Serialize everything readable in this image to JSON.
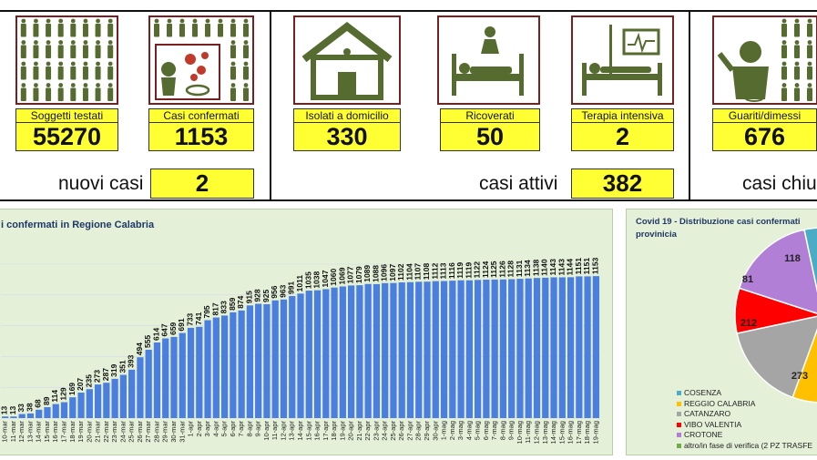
{
  "cards": [
    {
      "label": "Soggetti testati",
      "value": "55270",
      "icon": "crowd-icon"
    },
    {
      "label": "Casi confermati",
      "value": "1153",
      "icon": "virus-sneeze-icon"
    },
    {
      "label": "Isolati a domicilio",
      "value": "330",
      "icon": "house-icon"
    },
    {
      "label": "Ricoverati",
      "value": "50",
      "icon": "hospital-bed-icon"
    },
    {
      "label": "Terapia intensiva",
      "value": "2",
      "icon": "icu-bed-icon"
    },
    {
      "label": "Guariti/dimessi",
      "value": "676",
      "icon": "recovered-person-icon"
    }
  ],
  "summary": {
    "new_label": "nuovi casi",
    "new_value": "2",
    "active_label": "casi attivi",
    "active_value": "382",
    "closed_label": "casi chiu"
  },
  "colors": {
    "bar": "#4a7fe0",
    "label_yellow": "#ffff33",
    "icon_green": "#556b2f",
    "panel": "#e4f0d8"
  },
  "chart_data": [
    {
      "type": "bar",
      "title": "i confermati in Regione Calabria",
      "categories": [
        "10-mar",
        "11-mar",
        "12-mar",
        "13-mar",
        "14-mar",
        "15-mar",
        "16-mar",
        "17-mar",
        "18-mar",
        "19-mar",
        "20-mar",
        "21-mar",
        "22-mar",
        "23-mar",
        "24-mar",
        "25-mar",
        "26-mar",
        "27-mar",
        "28-mar",
        "29-mar",
        "30-mar",
        "31-mar",
        "1-apr",
        "2-apr",
        "3-apr",
        "4-apr",
        "5-apr",
        "6-apr",
        "7-apr",
        "8-apr",
        "9-apr",
        "10-apr",
        "11-apr",
        "12-apr",
        "13-apr",
        "14-apr",
        "15-apr",
        "16-apr",
        "17-apr",
        "18-apr",
        "19-apr",
        "20-apr",
        "21-apr",
        "22-apr",
        "23-apr",
        "24-apr",
        "25-apr",
        "26-apr",
        "27-apr",
        "28-apr",
        "29-apr",
        "30-apr",
        "1-mag",
        "2-mag",
        "3-mag",
        "4-mag",
        "5-mag",
        "6-mag",
        "7-mag",
        "8-mag",
        "9-mag",
        "10-mag",
        "11-mag",
        "12-mag",
        "13-mag",
        "14-mag",
        "15-mag",
        "16-mag",
        "17-mag",
        "18-mag",
        "19-mag"
      ],
      "values": [
        13,
        13,
        33,
        38,
        68,
        89,
        114,
        129,
        169,
        207,
        235,
        273,
        287,
        319,
        351,
        393,
        494,
        555,
        614,
        647,
        659,
        691,
        733,
        741,
        795,
        817,
        833,
        859,
        874,
        915,
        928,
        925,
        956,
        963,
        991,
        1011,
        1035,
        1038,
        1047,
        1060,
        1069,
        1077,
        1079,
        1089,
        1088,
        1096,
        1097,
        1102,
        1104,
        1107,
        1108,
        1112,
        1113,
        1116,
        1119,
        1119,
        1122,
        1124,
        1125,
        1126,
        1128,
        1131,
        1134,
        1138,
        1140,
        1143,
        1143,
        1144,
        1151,
        1151,
        1153
      ],
      "ylim": [
        0,
        1250
      ]
    },
    {
      "type": "pie",
      "title": "Covid 19 - Distribuzione casi confermati",
      "title_line2": "provinicia",
      "categories": [
        "COSENZA",
        "REGGIO CALABRIA",
        "CATANZARO",
        "VIBO VALENTIA",
        "CROTONE",
        "altro/in fase di verifica (2 PZ TRASFE"
      ],
      "colors": [
        "#4bacc6",
        "#ffc000",
        "#a5a5a5",
        "#ff0000",
        "#b27fd6",
        "#70ad47"
      ],
      "visible_labels": [
        "118",
        "81",
        "212",
        "273"
      ]
    }
  ]
}
